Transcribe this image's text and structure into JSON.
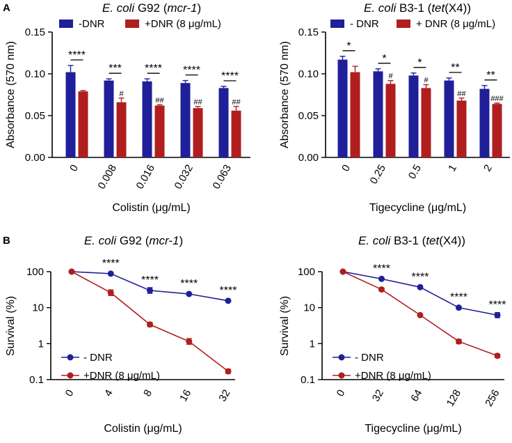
{
  "panel_letters": [
    "A",
    "B"
  ],
  "colors": {
    "no_dnr": "#1f1f99",
    "dnr": "#b01e1e",
    "axis": "#000000"
  },
  "chart_data": [
    {
      "id": "A1",
      "type": "bar",
      "title_parts": [
        {
          "text": "E. coli",
          "italic": true
        },
        {
          "text": " G92 (",
          "italic": false
        },
        {
          "text": "mcr-1",
          "italic": true
        },
        {
          "text": ")",
          "italic": false
        }
      ],
      "xlabel": "Colistin (μg/mL)",
      "ylabel": "Absorbance (570 nm)",
      "ylim": [
        0,
        0.15
      ],
      "yticks": [
        0,
        0.05,
        0.1,
        0.15
      ],
      "ytick_labels": [
        "0.00",
        "0.05",
        "0.10",
        "0.15"
      ],
      "categories": [
        "0",
        "0.008",
        "0.016",
        "0.032",
        "0.063"
      ],
      "series": [
        {
          "name": "-DNR",
          "color": "#1f1f99",
          "values": [
            0.102,
            0.092,
            0.091,
            0.089,
            0.083
          ],
          "errors": [
            0.008,
            0.002,
            0.003,
            0.003,
            0.002
          ]
        },
        {
          "name": "+DNR (8 μg/mL)",
          "color": "#b01e1e",
          "values": [
            0.079,
            0.066,
            0.062,
            0.059,
            0.056
          ],
          "errors": [
            0.001,
            0.005,
            0.001,
            0.002,
            0.005
          ]
        }
      ],
      "significance": [
        "****",
        "***",
        "****",
        "****",
        "****"
      ],
      "hash_marks": [
        "",
        "#",
        "##",
        "##",
        "##"
      ]
    },
    {
      "id": "A2",
      "type": "bar",
      "title_parts": [
        {
          "text": "E. coli",
          "italic": true
        },
        {
          "text": " B3-1 (",
          "italic": false
        },
        {
          "text": "tet",
          "italic": true
        },
        {
          "text": "(X4))",
          "italic": false
        }
      ],
      "xlabel": "Tigecycline (μg/mL)",
      "ylabel": "Absorbance (570 nm)",
      "ylim": [
        0,
        0.15
      ],
      "yticks": [
        0,
        0.05,
        0.1,
        0.15
      ],
      "ytick_labels": [
        "0.00",
        "0.05",
        "0.10",
        "0.15"
      ],
      "categories": [
        "0",
        "0.25",
        "0.5",
        "1",
        "2"
      ],
      "series": [
        {
          "name": "- DNR",
          "color": "#1f1f99",
          "values": [
            0.117,
            0.103,
            0.098,
            0.092,
            0.082
          ],
          "errors": [
            0.004,
            0.003,
            0.003,
            0.003,
            0.004
          ]
        },
        {
          "name": "+ DNR (8 μg/mL)",
          "color": "#b01e1e",
          "values": [
            0.102,
            0.088,
            0.083,
            0.068,
            0.064
          ],
          "errors": [
            0.007,
            0.004,
            0.004,
            0.003,
            0.001
          ]
        }
      ],
      "significance": [
        "*",
        "*",
        "*",
        "**",
        "**"
      ],
      "hash_marks": [
        "",
        "#",
        "#",
        "##",
        "###"
      ]
    },
    {
      "id": "B1",
      "type": "line",
      "yscale": "log",
      "title_parts": [
        {
          "text": "E. coli",
          "italic": true
        },
        {
          "text": " G92 (",
          "italic": false
        },
        {
          "text": "mcr-1",
          "italic": true
        },
        {
          "text": ")",
          "italic": false
        }
      ],
      "xlabel": "Colistin (μg/mL)",
      "ylabel": "Survival (%)",
      "ylim": [
        0.1,
        100
      ],
      "yticks": [
        0.1,
        1,
        10,
        100
      ],
      "ytick_labels": [
        "0.1",
        "1",
        "10",
        "100"
      ],
      "categories": [
        "0",
        "4",
        "8",
        "16",
        "32"
      ],
      "series": [
        {
          "name": "- DNR",
          "color": "#1f1f99",
          "values": [
            100,
            88,
            30,
            24,
            15.5
          ],
          "errors_log": [
            0.0,
            0.02,
            0.08,
            0.0,
            0.0
          ]
        },
        {
          "name": "+DNR (8 μg/mL)",
          "color": "#b01e1e",
          "values": [
            100,
            26,
            3.4,
            1.15,
            0.17
          ],
          "errors_log": [
            0.0,
            0.08,
            0.06,
            0.08,
            0.06
          ]
        }
      ],
      "significance": [
        "",
        "****",
        "****",
        "****",
        "****"
      ]
    },
    {
      "id": "B2",
      "type": "line",
      "yscale": "log",
      "title_parts": [
        {
          "text": "E. coli",
          "italic": true
        },
        {
          "text": " B3-1 (",
          "italic": false
        },
        {
          "text": "tet",
          "italic": true
        },
        {
          "text": "(X4))",
          "italic": false
        }
      ],
      "xlabel": "Tigecycline (μg/mL)",
      "ylabel": "Survival (%)",
      "ylim": [
        0.1,
        100
      ],
      "yticks": [
        0.1,
        1,
        10,
        100
      ],
      "ytick_labels": [
        "0.1",
        "1",
        "10",
        "100"
      ],
      "categories": [
        "0",
        "32",
        "64",
        "128",
        "256"
      ],
      "series": [
        {
          "name": "- DNR",
          "color": "#1f1f99",
          "values": [
            100,
            63,
            37,
            10,
            6.2
          ],
          "errors_log": [
            0.0,
            0.02,
            0.03,
            0.0,
            0.07
          ]
        },
        {
          "name": "+DNR (8 μg/mL)",
          "color": "#b01e1e",
          "values": [
            100,
            32,
            6.2,
            1.15,
            0.46
          ],
          "errors_log": [
            0.0,
            0.04,
            0.0,
            0.06,
            0.05
          ]
        }
      ],
      "significance": [
        "",
        "****",
        "****",
        "****",
        "****"
      ]
    }
  ]
}
